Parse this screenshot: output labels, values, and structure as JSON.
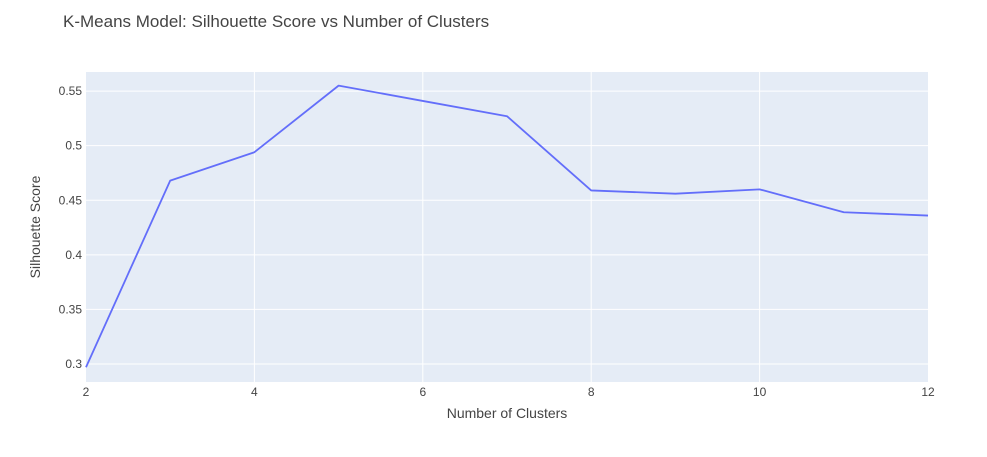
{
  "chart_data": {
    "type": "line",
    "title": "K-Means Model: Silhouette Score vs Number of Clusters",
    "xlabel": "Number of Clusters",
    "ylabel": "Silhouette Score",
    "x": [
      2,
      3,
      4,
      5,
      6,
      7,
      8,
      9,
      10,
      11,
      12
    ],
    "series": [
      {
        "values": [
          0.297,
          0.468,
          0.494,
          0.555,
          0.541,
          0.527,
          0.459,
          0.456,
          0.46,
          0.439,
          0.436
        ],
        "color": "#636efa"
      }
    ],
    "xlim": [
      2,
      12
    ],
    "ylim": [
      0.2835,
      0.5675
    ],
    "xticks": [
      2,
      4,
      6,
      8,
      10,
      12
    ],
    "xtick_labels": [
      "2",
      "4",
      "6",
      "8",
      "10",
      "12"
    ],
    "yticks": [
      0.3,
      0.35,
      0.4,
      0.45,
      0.5,
      0.55
    ],
    "ytick_labels": [
      "0.3",
      "0.35",
      "0.4",
      "0.45",
      "0.5",
      "0.55"
    ],
    "grid": true,
    "legend": "none",
    "colors": {
      "plot_background": "#e5ecf6",
      "gridline": "#ffffff",
      "text": "#444444"
    }
  }
}
